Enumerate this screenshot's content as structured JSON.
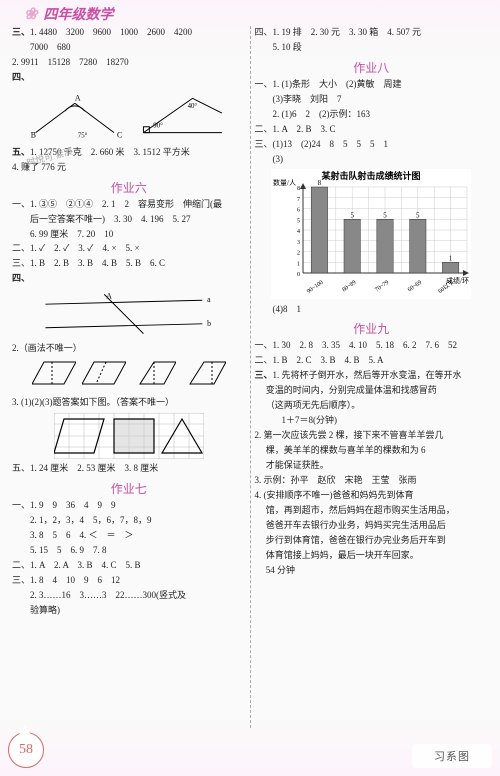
{
  "page": {
    "number": "58",
    "title": "四年级数学"
  },
  "watermark": "习系图",
  "faded_mark": "时悦可\n紧凑",
  "left": {
    "block_san": {
      "head": "三、",
      "l1": "1. 4480　3200　9600　1000　2600　4200",
      "l2": "　　7000　680",
      "l3": "2. 9911　15128　7280　18270"
    },
    "block_si_head": "四、",
    "block_wu": {
      "head": "五、",
      "l1": "1. 12750 千克　2. 660 米　3. 1512 平方米",
      "l2": "4. 赚了 776 元"
    },
    "zuoye6": {
      "title": "作业六",
      "yi_l1": "一、1. ③⑤　②①④　2. 1　2　容易变形　伸缩门(最",
      "yi_l2": "　　后一空答案不唯一)　3. 30　4. 196　5. 27",
      "yi_l3": "　　6. 99 厘米　7. 20　10",
      "er": "二、1. ✓　2. ✓　3. ✓　4. ×　5. ×",
      "san": "三、1. B　2. B　3. B　4. B　5. B　6. C",
      "si_head": "四、",
      "si_note": "2.（画法不唯一）",
      "shapes": {
        "labels": [
          "底",
          "高",
          "底",
          "高"
        ]
      },
      "shapes3_caption": "3. (1)(2)(3)题答案如下图。（答案不唯一）",
      "five": "五、1. 24 厘米　2. 53 厘米　3. 8 厘米"
    },
    "zuoye7": {
      "title": "作业七",
      "yi_l1": "一、1. 9　9　36　4　9　9",
      "yi_l2": "　　2. 1，2，3，4　5，6，7，8，9",
      "yi_l3": "　　3. 8　5　6　4. ＜　＝　＞",
      "yi_l4": "　　5. 15　5　6. 9　7. 8",
      "er": "二、1. A　2. A　3. B　4. C　5. B",
      "san_l1": "三、1. 8　4　10　9　6　12",
      "san_l2": "　　2. 3……16　3……3　22……300(竖式及",
      "san_l3": "　　验算略)"
    }
  },
  "right": {
    "top": {
      "si_l1": "四、1. 19 排　2. 30 元　3. 30 箱　4. 507 元",
      "si_l2": "　　5. 10 段"
    },
    "zuoye8": {
      "title": "作业八",
      "yi_l1": "一、1. (1)条形　大小　(2)黄敏　周建",
      "yi_l2": "　　(3)李晓　刘阳　7",
      "yi_l3": "　　2. (1)6　2　(2)示例：163",
      "er": "二、1. A　2. B　3. C",
      "san_l1": "三、(1)13　(2)24　8　5　5　5　1",
      "san_l2": "　　(3)",
      "chart": {
        "title": "某射击队射击成绩统计图",
        "ylab": "数量/人",
        "xlab": "成绩/环",
        "categories": [
          "90~100",
          "80~89",
          "70~79",
          "60~69",
          "60以下"
        ],
        "values": [
          8,
          5,
          5,
          5,
          1
        ],
        "ymax": 8,
        "ystep": 1,
        "bar_color": "#888888",
        "grid_color": "#cccccc",
        "bg_color": "#ffffff",
        "axis_color": "#333333"
      },
      "san_l3": "　　(4)8　1"
    },
    "zuoye9": {
      "title": "作业九",
      "yi": "一、1. 30　2. 8　3. 35　4. 10　5. 18　6. 2　7. 6　52",
      "er": "二、1. B　2. C　3. B　4. B　5. A",
      "san_head": "三、",
      "q1_l1": "1. 先将杯子倒开水，然后等开水变温，在等开水",
      "q1_l2": "　 变温的时间内，分别完成量体温和找感冒药",
      "q1_l3": "　 （这两项无先后顺序）。",
      "q1_l4": "　　　1＋7＝8(分钟)",
      "q2_l1": "2. 第一次应该先尝 2 棵，接下来不管喜羊羊尝几",
      "q2_l2": "　 棵，美羊羊的棵数与喜羊羊的棵数和为 6",
      "q2_l3": "　 才能保证获胜。",
      "q3": "3. 示例：孙平　赵欣　宋艳　王莹　张雨",
      "q4_l1": "4. (安排顺序不唯一)爸爸和妈妈先到体育",
      "q4_l2": "　 馆，再到超市，然后妈妈在超市购买生活用品，",
      "q4_l3": "　 爸爸开车去银行办业务，妈妈买完生活用品后",
      "q4_l4": "　 步行到体育馆，爸爸在银行办完业务后开车到",
      "q4_l5": "　 体育馆接上妈妈，最后一块开车回家。",
      "q4_l6": "　 54 分钟"
    }
  }
}
